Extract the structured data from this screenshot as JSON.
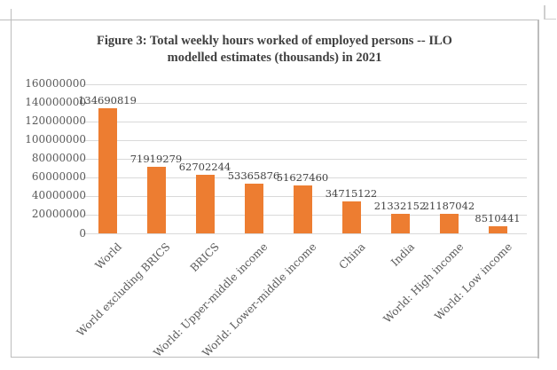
{
  "chart_data": {
    "type": "bar",
    "title": "Figure 3: Total weekly hours worked of employed persons -- ILO modelled estimates (thousands) in 2021",
    "title_lines": [
      "Figure 3: Total weekly hours worked of employed persons -- ILO",
      "modelled estimates (thousands) in 2021"
    ],
    "categories": [
      "World",
      "World excluding BRICS",
      "BRICS",
      "World: Upper-middle income",
      "World: Lower-middle income",
      "China",
      "India",
      "World: High income",
      "World: Low income"
    ],
    "values": [
      134690819,
      71919279,
      62702244,
      53365876,
      51627460,
      34715122,
      21332152,
      21187042,
      8510441
    ],
    "data_labels": [
      "134690819",
      "71919279",
      "62702244",
      "53365876",
      "51627460",
      "34715122",
      "21332152",
      "21187042",
      "8510441"
    ],
    "xlabel": "",
    "ylabel": "",
    "ylim": [
      0,
      160000000
    ],
    "ytick_step": 20000000,
    "ytick_labels": [
      "0",
      "20000000",
      "40000000",
      "60000000",
      "80000000",
      "100000000",
      "120000000",
      "140000000",
      "160000000"
    ],
    "grid": true,
    "legend": "none",
    "colors": {
      "bar": "#ED7D31",
      "gridline": "#D9D9D9",
      "title_text": "#3F3F3F",
      "tick_text": "#595959",
      "data_label_text": "#444444",
      "frame": "#BDBDBD"
    }
  }
}
